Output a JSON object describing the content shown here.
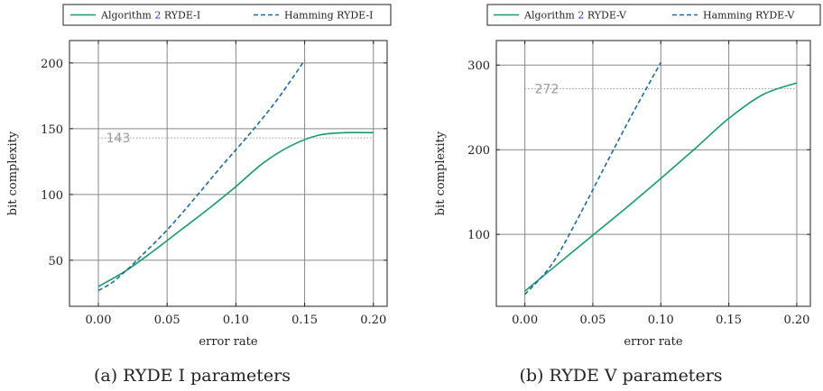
{
  "colors": {
    "algorithm": "#1a9a6b",
    "hamming": "#1f6aa0",
    "grid": "#888888",
    "reference": "#9a9a9a",
    "citation": "#2233cc"
  },
  "chart_data": [
    {
      "type": "line",
      "caption": "(a) RYDE I parameters",
      "xlabel": "error rate",
      "ylabel": "bit complexity",
      "xlim": [
        -0.021,
        0.21
      ],
      "ylim": [
        15,
        217
      ],
      "xticks": [
        0.0,
        0.05,
        0.1,
        0.15,
        0.2
      ],
      "xtick_labels": [
        "0.00",
        "0.05",
        "0.10",
        "0.15",
        "0.20"
      ],
      "yticks": [
        50,
        100,
        150,
        200
      ],
      "ytick_labels": [
        "50",
        "100",
        "150",
        "200"
      ],
      "grid": true,
      "legend": {
        "placement": "top",
        "entries": [
          {
            "prefix": "Algorithm",
            "ref": "2",
            "suffix": "RYDE-I",
            "style": "solid"
          },
          {
            "text": "Hamming RYDE-I",
            "style": "dashed"
          }
        ]
      },
      "reference_line": {
        "y": 143,
        "label": "143",
        "x_from": 0.0,
        "x_to": 0.2
      },
      "series": [
        {
          "name": "Algorithm 2 RYDE-I",
          "style": "solid",
          "color": "#1a9a6b",
          "x": [
            0.0,
            0.02,
            0.04,
            0.06,
            0.08,
            0.1,
            0.12,
            0.14,
            0.16,
            0.18,
            0.2
          ],
          "y": [
            30,
            42,
            57,
            73,
            89,
            106,
            124,
            137,
            145,
            147,
            147
          ]
        },
        {
          "name": "Hamming RYDE-I",
          "style": "dashed",
          "color": "#1f6aa0",
          "x": [
            0.0,
            0.01,
            0.02,
            0.03,
            0.05,
            0.07,
            0.09,
            0.11,
            0.13,
            0.15
          ],
          "y": [
            27,
            33,
            42,
            52,
            73,
            97,
            122,
            146,
            172,
            202
          ]
        }
      ]
    },
    {
      "type": "line",
      "caption": "(b) RYDE V parameters",
      "xlabel": "error rate",
      "ylabel": "bit complexity",
      "xlim": [
        -0.021,
        0.21
      ],
      "ylim": [
        15,
        329
      ],
      "xticks": [
        0.0,
        0.05,
        0.1,
        0.15,
        0.2
      ],
      "xtick_labels": [
        "0.00",
        "0.05",
        "0.10",
        "0.15",
        "0.20"
      ],
      "yticks": [
        100,
        200,
        300
      ],
      "ytick_labels": [
        "100",
        "200",
        "300"
      ],
      "grid": true,
      "legend": {
        "placement": "top",
        "entries": [
          {
            "prefix": "Algorithm",
            "ref": "2",
            "suffix": "RYDE-V",
            "style": "solid"
          },
          {
            "text": "Hamming RYDE-V",
            "style": "dashed"
          }
        ]
      },
      "reference_line": {
        "y": 272,
        "label": "272",
        "x_from": 0.0,
        "x_to": 0.2
      },
      "series": [
        {
          "name": "Algorithm 2 RYDE-V",
          "style": "solid",
          "color": "#1a9a6b",
          "x": [
            0.0,
            0.025,
            0.05,
            0.075,
            0.1,
            0.125,
            0.15,
            0.175,
            0.2
          ],
          "y": [
            33,
            66,
            99,
            132,
            166,
            201,
            237,
            265,
            279
          ]
        },
        {
          "name": "Hamming RYDE-V",
          "style": "dashed",
          "color": "#1f6aa0",
          "x": [
            0.0,
            0.02,
            0.04,
            0.06,
            0.08,
            0.1
          ],
          "y": [
            29,
            65,
            122,
            184,
            245,
            303
          ]
        }
      ]
    }
  ]
}
